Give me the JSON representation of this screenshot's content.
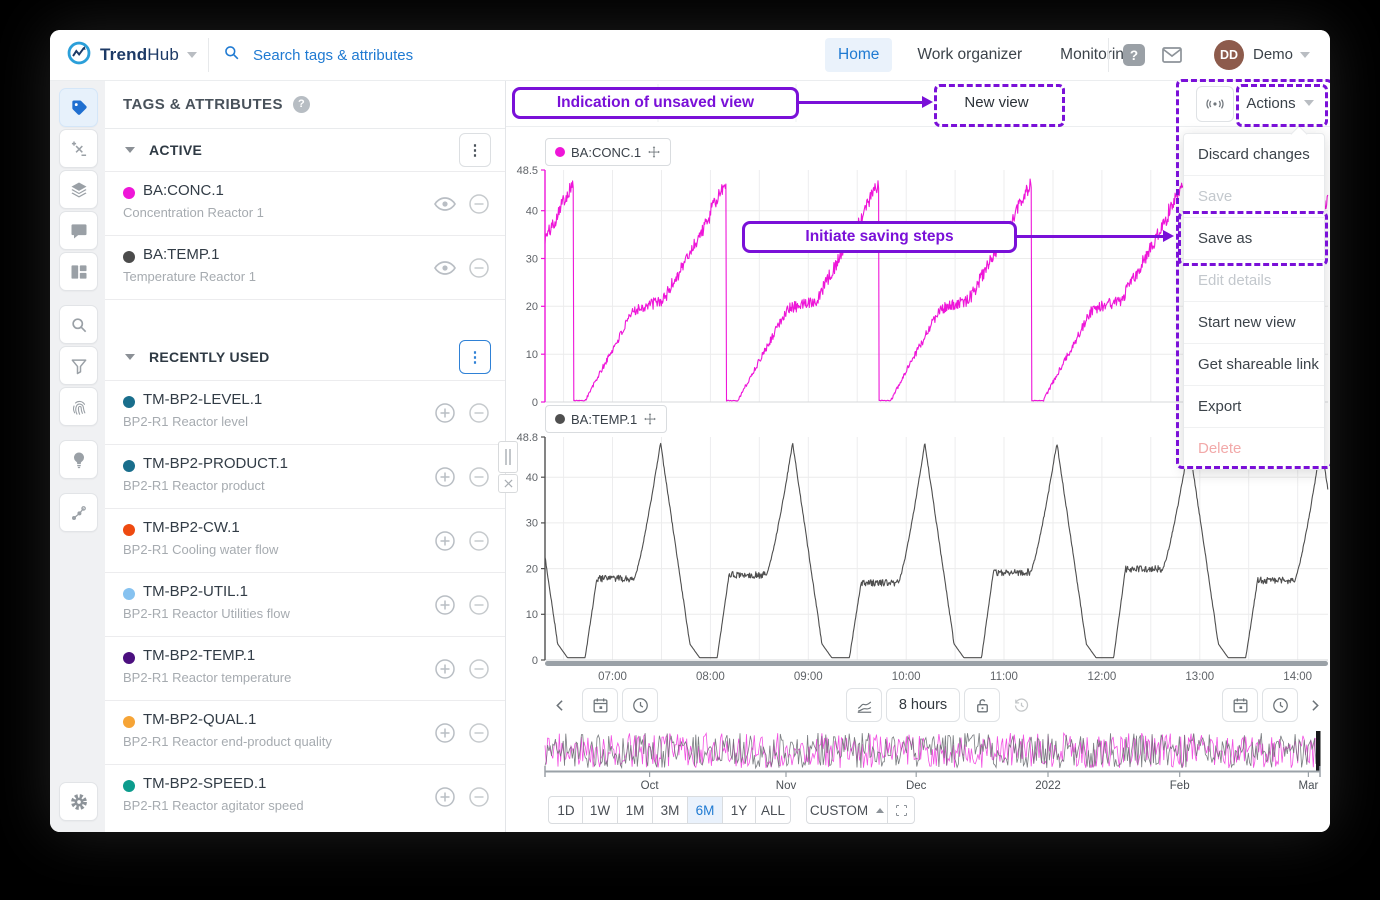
{
  "topbar": {
    "brand": {
      "bold": "Trend",
      "light": "Hub"
    },
    "search_placeholder": "Search tags & attributes",
    "nav": [
      {
        "label": "Home",
        "active": true
      },
      {
        "label": "Work organizer",
        "active": false
      },
      {
        "label": "Monitoring",
        "active": false
      }
    ],
    "user": {
      "initials": "DD",
      "name": "Demo",
      "avatar_color": "#8d5b4c"
    }
  },
  "icon_rail": [
    {
      "name": "tags",
      "active": true,
      "gap": false
    },
    {
      "name": "formulas",
      "active": false,
      "gap": false
    },
    {
      "name": "layers",
      "active": false,
      "gap": false
    },
    {
      "name": "comments",
      "active": false,
      "gap": false
    },
    {
      "name": "dashboards",
      "active": false,
      "gap": false
    },
    {
      "name": "search",
      "active": false,
      "gap": true
    },
    {
      "name": "filter",
      "active": false,
      "gap": false
    },
    {
      "name": "fingerprint",
      "active": false,
      "gap": false
    },
    {
      "name": "recommendations",
      "active": false,
      "gap": true
    },
    {
      "name": "context",
      "active": false,
      "gap": true
    }
  ],
  "tags_panel": {
    "title": "TAGS & ATTRIBUTES",
    "sections": [
      {
        "title": "ACTIVE",
        "menu_focused": false,
        "row_icons": [
          "visibility",
          "remove"
        ],
        "items": [
          {
            "name": "BA:CONC.1",
            "desc": "Concentration Reactor 1",
            "color": "#ee16d8"
          },
          {
            "name": "BA:TEMP.1",
            "desc": "Temperature Reactor 1",
            "color": "#4b4b4b"
          }
        ]
      },
      {
        "title": "RECENTLY USED",
        "menu_focused": true,
        "row_icons": [
          "add",
          "remove"
        ],
        "items": [
          {
            "name": "TM-BP2-LEVEL.1",
            "desc": "BP2-R1 Reactor level",
            "color": "#196e8c"
          },
          {
            "name": "TM-BP2-PRODUCT.1",
            "desc": "BP2-R1 Reactor product",
            "color": "#196e8c"
          },
          {
            "name": "TM-BP2-CW.1",
            "desc": "BP2-R1 Cooling water flow",
            "color": "#ee4a10"
          },
          {
            "name": "TM-BP2-UTIL.1",
            "desc": "BP2-R1 Reactor Utilities flow",
            "color": "#86c2f0"
          },
          {
            "name": "TM-BP2-TEMP.1",
            "desc": "BP2-R1 Reactor temperature",
            "color": "#4b0f7f"
          },
          {
            "name": "TM-BP2-QUAL.1",
            "desc": "BP2-R1 Reactor end-product quality",
            "color": "#f6a436"
          },
          {
            "name": "TM-BP2-SPEED.1",
            "desc": "BP2-R1 Reactor agitator speed",
            "color": "#0c9c8d"
          }
        ]
      }
    ]
  },
  "view_header": {
    "new_view_label": "New view",
    "actions_label": "Actions"
  },
  "actions_menu": {
    "items": [
      {
        "label": "Discard changes",
        "state": "normal"
      },
      {
        "label": "Save",
        "state": "disabled"
      },
      {
        "label": "Save as",
        "state": "normal"
      },
      {
        "label": "Edit details",
        "state": "disabled"
      },
      {
        "label": "Start new view",
        "state": "normal"
      },
      {
        "label": "Get shareable link",
        "state": "normal"
      },
      {
        "label": "Export",
        "state": "normal"
      },
      {
        "label": "Delete",
        "state": "danger-disabled"
      }
    ]
  },
  "annotations": {
    "unsaved_text": "Indication of unsaved view",
    "saving_text": "Initiate saving steps",
    "color": "#7a10d8"
  },
  "toolbar": {
    "duration_label": "8 hours"
  },
  "timebar": {
    "range_buttons": [
      "1D",
      "1W",
      "1M",
      "3M",
      "6M",
      "1Y",
      "ALL"
    ],
    "active": "6M",
    "custom_label": "CUSTOM",
    "months": [
      "Oct",
      "Nov",
      "Dec",
      "2022",
      "Feb",
      "Mar"
    ]
  },
  "chart_data": [
    {
      "type": "line",
      "title": "BA:CONC.1",
      "color": "#ee16d8",
      "y_axis": {
        "top_label": "48.5",
        "max": 48.5,
        "ticks": [
          0,
          10,
          20,
          30,
          40
        ]
      },
      "x_axis": {
        "start_hour": 6.31,
        "end_hour": 14.31,
        "tick_labels": [
          "07:00",
          "08:00",
          "09:00",
          "10:00",
          "11:00",
          "12:00",
          "13:00",
          "14:00"
        ]
      },
      "pattern": {
        "shape": "noisy-ramp-then-vertical-drop",
        "period_hours": 1.56,
        "first_drop_hour": 6.6,
        "base": 0.3,
        "mid_plateau": 19.5,
        "peak": 46.5
      }
    },
    {
      "type": "line",
      "title": "BA:TEMP.1",
      "color": "#4f4f4f",
      "y_axis": {
        "top_label": "48.8",
        "max": 48.8,
        "ticks": [
          0,
          10,
          20,
          30,
          40
        ]
      },
      "x_axis": {
        "start_hour": 6.31,
        "end_hour": 14.31,
        "tick_labels": [
          "07:00",
          "08:00",
          "09:00",
          "10:00",
          "11:00",
          "12:00",
          "13:00",
          "14:00"
        ]
      },
      "pattern": {
        "shape": "peak-descend-plateau-cycle",
        "period_hours": 1.35,
        "first_peak_hour": 7.49,
        "base": 0.5,
        "plateau": 18.5,
        "peak": 47.5
      }
    }
  ]
}
